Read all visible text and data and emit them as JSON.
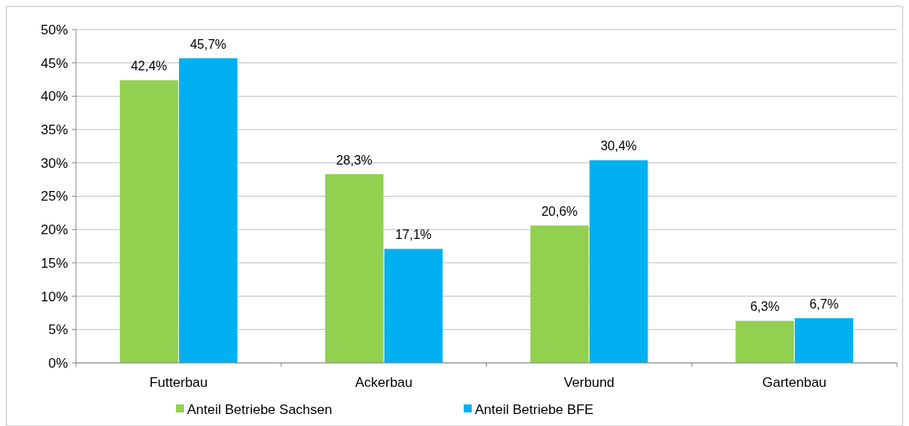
{
  "chart_data": {
    "type": "bar",
    "categories": [
      "Futterbau",
      "Ackerbau",
      "Verbund",
      "Gartenbau"
    ],
    "series": [
      {
        "name": "Anteil Betriebe Sachsen",
        "color": "#92d050",
        "values": [
          42.4,
          28.3,
          20.6,
          6.3
        ],
        "value_labels": [
          "42,4%",
          "28,3%",
          "20,6%",
          "6,3%"
        ]
      },
      {
        "name": "Anteil Betriebe BFE",
        "color": "#00b0f0",
        "values": [
          45.7,
          17.1,
          30.4,
          6.7
        ],
        "value_labels": [
          "45,7%",
          "17,1%",
          "30,4%",
          "6,7%"
        ]
      }
    ],
    "ylim": [
      0,
      50
    ],
    "yticks": [
      {
        "value": 0,
        "label": "0%"
      },
      {
        "value": 5,
        "label": "5%"
      },
      {
        "value": 10,
        "label": "10%"
      },
      {
        "value": 15,
        "label": "15%"
      },
      {
        "value": 20,
        "label": "20%"
      },
      {
        "value": 25,
        "label": "25%"
      },
      {
        "value": 30,
        "label": "30%"
      },
      {
        "value": 35,
        "label": "35%"
      },
      {
        "value": 40,
        "label": "40%"
      },
      {
        "value": 45,
        "label": "45%"
      },
      {
        "value": 50,
        "label": "50%"
      }
    ],
    "grid": "y",
    "legend": "bottom"
  }
}
